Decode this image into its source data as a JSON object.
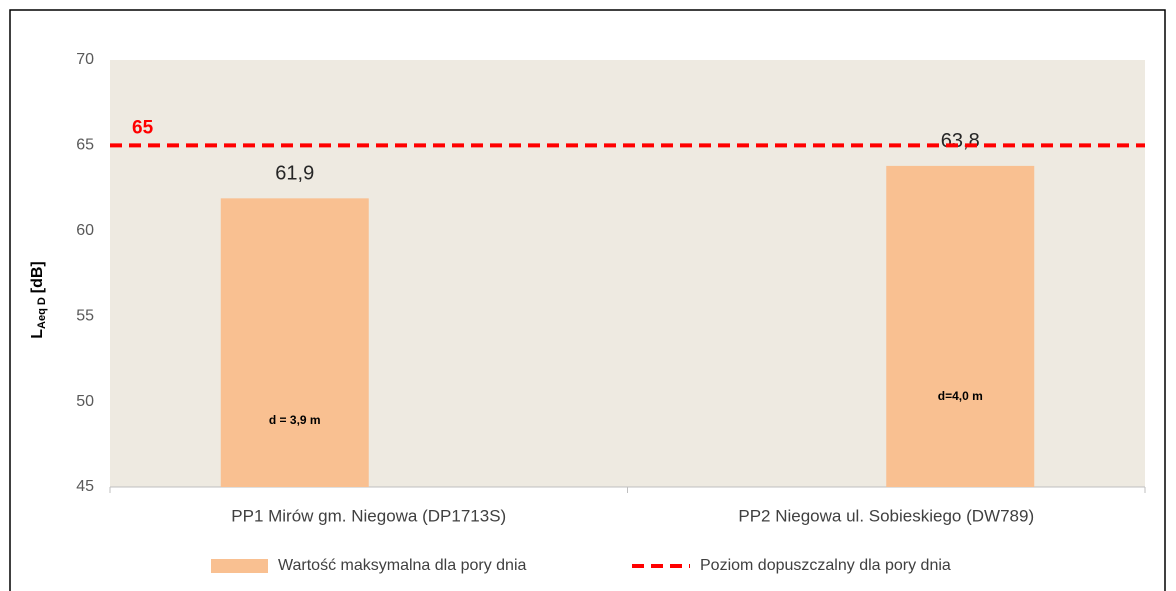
{
  "chart_data": {
    "type": "bar",
    "y_label": {
      "main": "L",
      "sub": "Aeq D",
      "unit": "[dB]"
    },
    "categories": [
      "PP1 Mirów gm. Niegowa (DP1713S)",
      "PP2 Niegowa ul. Sobieskiego (DW789)"
    ],
    "series": [
      {
        "name": "Wartość maksymalna dla pory dnia",
        "color": "#f9c091",
        "values": [
          61.9,
          63.8
        ],
        "value_labels": [
          "61,9",
          "63,8"
        ]
      }
    ],
    "annotations": [
      "d = 3,9 m",
      "d=4,0 m"
    ],
    "threshold": {
      "name": "Poziom dopuszczalny dla pory dnia",
      "value": 65,
      "label": "65",
      "color": "#ff0000"
    },
    "ylim": [
      45,
      70
    ],
    "yticks": [
      45,
      50,
      55,
      60,
      65,
      70
    ],
    "grid": false,
    "legend": "bottom"
  }
}
